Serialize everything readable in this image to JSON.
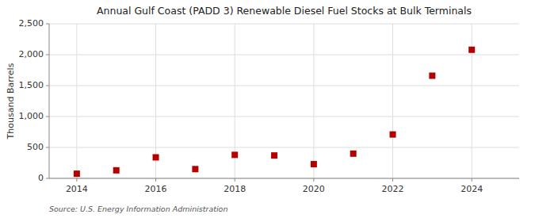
{
  "chart_data": {
    "type": "scatter",
    "title": "Annual Gulf Coast (PADD 3) Renewable Diesel Fuel Stocks at Bulk Terminals",
    "y_label": "Thousand Barrels",
    "annotations": [
      "Source: U.S. Energy Information Administration"
    ],
    "x": [
      2014,
      2015,
      2016,
      2017,
      2018,
      2019,
      2020,
      2021,
      2022,
      2023,
      2024
    ],
    "values": [
      75,
      130,
      340,
      150,
      380,
      370,
      230,
      400,
      710,
      1660,
      2080
    ],
    "color": "#b50000",
    "marker": "square",
    "xlim": [
      2013.3,
      2025.2
    ],
    "ylim": [
      0,
      2500
    ],
    "xticks": [
      2014,
      2016,
      2018,
      2020,
      2022,
      2024
    ],
    "yticks": [
      0,
      500,
      {
        "value": 1000,
        "label": "1,000"
      },
      {
        "value": 1500,
        "label": "1,500"
      },
      {
        "value": 2000,
        "label": "2,000"
      },
      {
        "value": 2500,
        "label": "2,500"
      }
    ],
    "grid": true
  }
}
